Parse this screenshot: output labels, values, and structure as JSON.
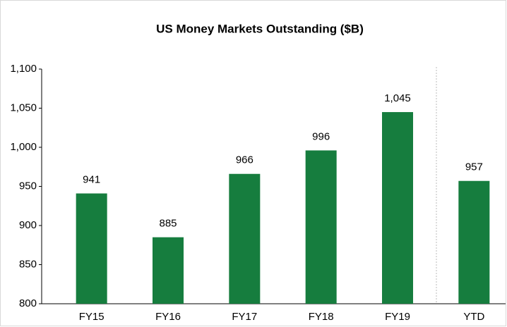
{
  "chart_data": {
    "type": "bar",
    "title": "US Money Markets Outstanding ($B)",
    "categories": [
      "FY15",
      "FY16",
      "FY17",
      "FY18",
      "FY19",
      "YTD"
    ],
    "values": [
      941,
      885,
      966,
      996,
      1045,
      957
    ],
    "value_labels": [
      "941",
      "885",
      "966",
      "996",
      "1,045",
      "957"
    ],
    "color": "#167d3e",
    "ylim": [
      800,
      1100
    ],
    "yticks": [
      800,
      850,
      900,
      950,
      {
        "value": 1000,
        "label": "1,000"
      },
      {
        "value": 1050,
        "label": "1,050"
      },
      {
        "value": 1100,
        "label": "1,100"
      }
    ],
    "grid": false
  }
}
